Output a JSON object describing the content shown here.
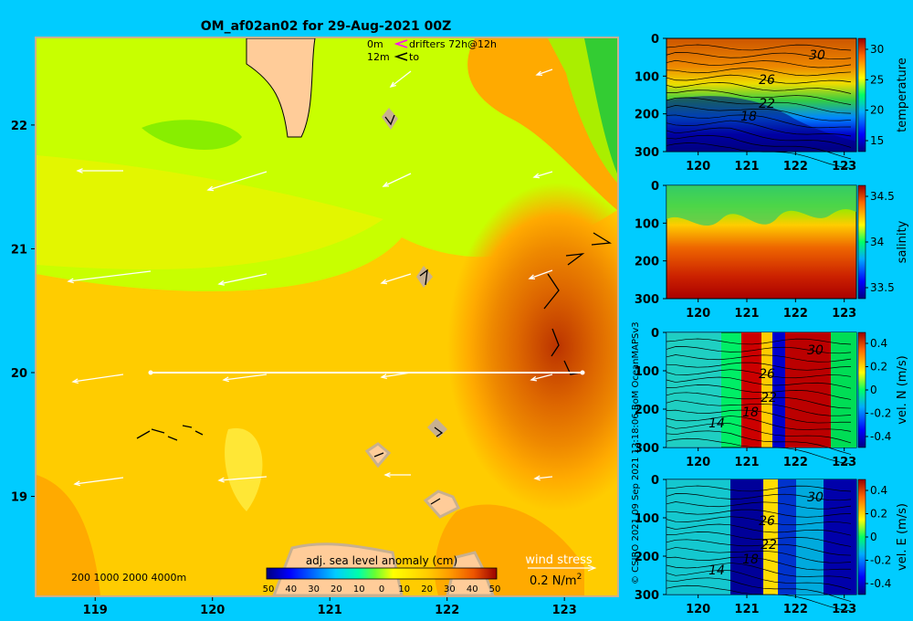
{
  "title": "OM_af02an02 for 29-Aug-2021 00Z",
  "legend_top": {
    "line1_depth": "0m",
    "line1_text": "drifters 72h@12h",
    "line2_depth": "12m",
    "line2_text": "to"
  },
  "bathy_label": "200  1000  2000  4000m",
  "colorbar": {
    "title": "adj. sea level anomaly (cm)",
    "ticks": [
      "50",
      "40",
      "30",
      "20",
      "10",
      "0",
      "10",
      "20",
      "30",
      "40",
      "50"
    ]
  },
  "wind": {
    "title": "wind stress",
    "scale_value": "0.2 N/m",
    "scale_exp": "2"
  },
  "side_credit": "© CSIRO 2021   09 Sep 2021 12:18:06 BoM OceanMAPSv3",
  "chart_data": [
    {
      "type": "heatmap",
      "name": "map",
      "title": "OM_af02an02 for 29-Aug-2021 00Z",
      "x_ticks": [
        "119",
        "120",
        "121",
        "122",
        "123"
      ],
      "y_ticks": [
        "22",
        "21",
        "20",
        "19"
      ],
      "xlim": [
        118.5,
        123.45
      ],
      "ylim": [
        18.2,
        22.7
      ],
      "section_line": {
        "lat": 20.0,
        "lon_from": 119.5,
        "lon_to": 123.2
      },
      "colors": {
        "green_low": "#c8ff00",
        "yellow": "#ffdd00",
        "orange": "#ffaa00",
        "dark_orange": "#ee7700",
        "red": "#bb3300",
        "land": "#ffcc99",
        "shelf": "#c8b090"
      }
    },
    {
      "type": "heatmap",
      "name": "temperature",
      "x_ticks": [
        "120",
        "121",
        "122",
        "123"
      ],
      "y_ticks": [
        "0",
        "100",
        "200",
        "300"
      ],
      "cbar_label": "temperature",
      "cbar_ticks": [
        "30",
        "25",
        "20",
        "15"
      ],
      "contour_labels": [
        "30",
        "26",
        "22",
        "18"
      ]
    },
    {
      "type": "heatmap",
      "name": "salinity",
      "x_ticks": [
        "120",
        "121",
        "122",
        "123"
      ],
      "y_ticks": [
        "0",
        "100",
        "200",
        "300"
      ],
      "cbar_label": "salinity",
      "cbar_ticks": [
        "34.5",
        "34",
        "33.5"
      ]
    },
    {
      "type": "heatmap",
      "name": "vel_n",
      "x_ticks": [
        "120",
        "121",
        "122",
        "123"
      ],
      "y_ticks": [
        "0",
        "100",
        "200",
        "300"
      ],
      "cbar_label": "vel. N (m/s)",
      "cbar_ticks": [
        "0.4",
        "0.2",
        "0",
        "-0.2",
        "-0.4"
      ],
      "contour_labels": [
        "30",
        "26",
        "22",
        "18",
        "14"
      ]
    },
    {
      "type": "heatmap",
      "name": "vel_e",
      "x_ticks": [
        "120",
        "121",
        "122",
        "123"
      ],
      "y_ticks": [
        "0",
        "100",
        "200",
        "300"
      ],
      "cbar_label": "vel. E (m/s)",
      "cbar_ticks": [
        "0.4",
        "0.2",
        "0",
        "-0.2",
        "-0.4"
      ],
      "contour_labels": [
        "30",
        "26",
        "22",
        "18",
        "14"
      ]
    }
  ]
}
